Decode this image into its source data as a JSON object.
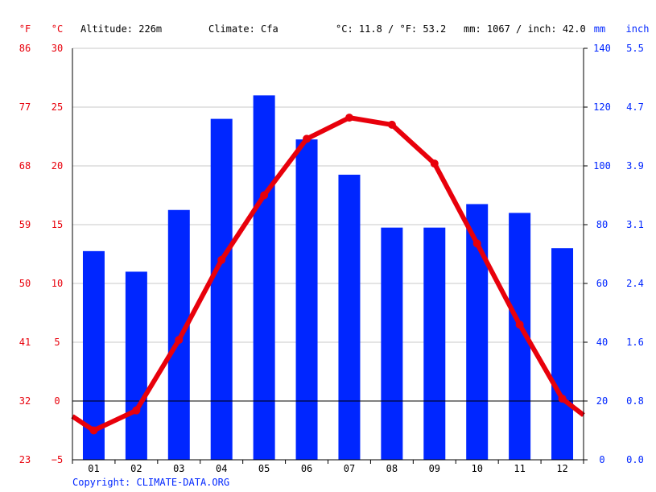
{
  "header": {
    "unit_f": "°F",
    "unit_c": "°C",
    "altitude": "Altitude: 226m",
    "climate": "Climate: Cfa",
    "temp_avg": "°C: 11.8 / °F: 53.2",
    "precip_total": "mm: 1067 / inch: 42.0",
    "unit_mm": "mm",
    "unit_inch": "inch"
  },
  "copyright": "Copyright: CLIMATE-DATA.ORG",
  "colors": {
    "temperature": "#e8000b",
    "precipitation": "#0026ff",
    "grid": "#c8c8c8"
  },
  "chart_data": {
    "type": "bar+line",
    "categories": [
      "01",
      "02",
      "03",
      "04",
      "05",
      "06",
      "07",
      "08",
      "09",
      "10",
      "11",
      "12"
    ],
    "precipitation_mm": [
      71,
      64,
      85,
      116,
      124,
      109,
      97,
      79,
      79,
      87,
      84,
      72
    ],
    "temperature_c": [
      -2.5,
      -0.8,
      5.2,
      12.0,
      17.5,
      22.3,
      24.1,
      23.5,
      20.2,
      13.4,
      6.5,
      0.2
    ],
    "temperature_edges_c": [
      -1.3,
      -1.2
    ],
    "temp_axis_c": {
      "ticks": [
        -5,
        0,
        5,
        10,
        15,
        20,
        25,
        30
      ],
      "range": [
        -5,
        30
      ]
    },
    "temp_axis_f": {
      "ticks": [
        "23",
        "32",
        "41",
        "50",
        "59",
        "68",
        "77",
        "86"
      ]
    },
    "precip_axis_mm": {
      "ticks": [
        0,
        20,
        40,
        60,
        80,
        100,
        120,
        140
      ],
      "range": [
        0,
        140
      ]
    },
    "precip_axis_inch": {
      "ticks": [
        "0.0",
        "0.8",
        "1.6",
        "2.4",
        "3.1",
        "3.9",
        "4.7",
        "5.5"
      ]
    },
    "grid": true,
    "zero_line": true
  }
}
